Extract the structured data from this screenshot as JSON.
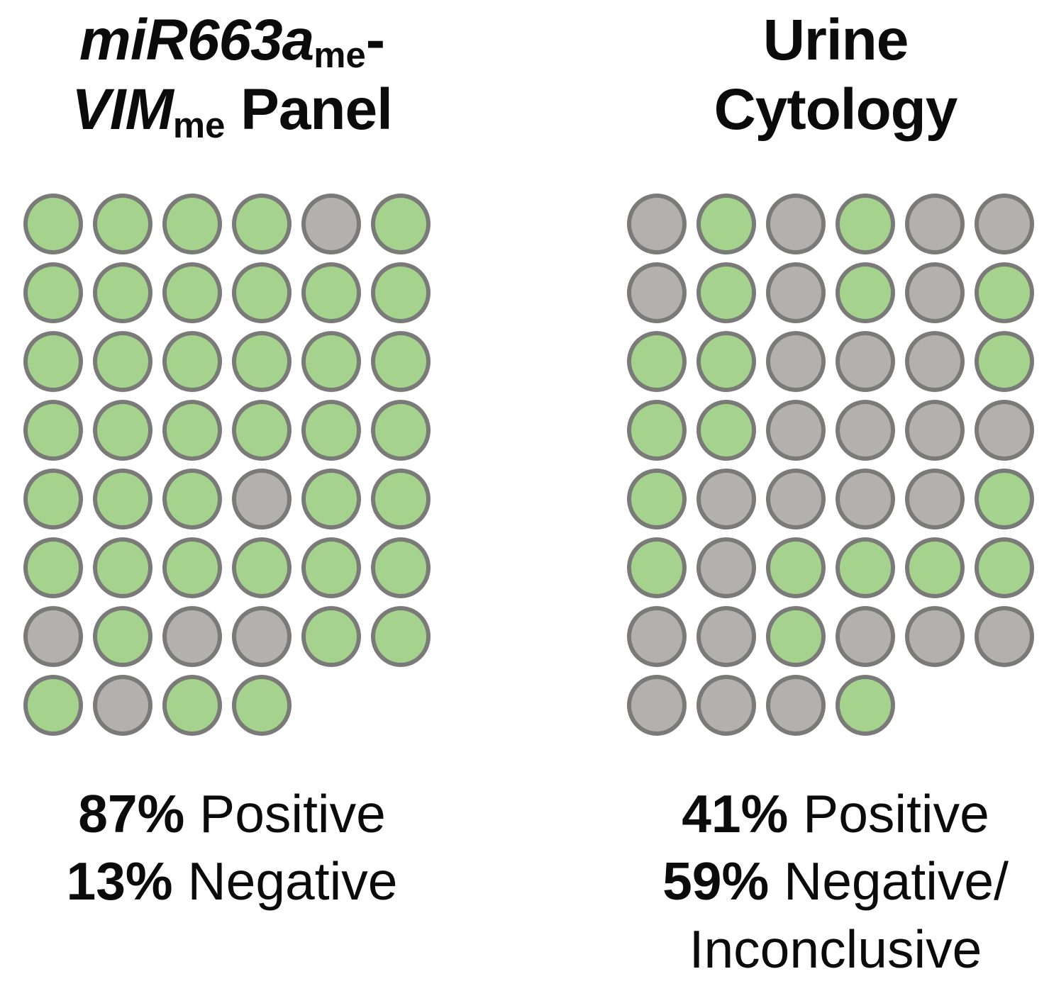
{
  "colors": {
    "positive_green": "#a5d38d",
    "negative_gray": "#b4b0ad",
    "dot_border": "#7a7a78",
    "text": "#0b0b0b",
    "background": "#ffffff"
  },
  "panels": [
    {
      "id": "mir663a-vim-panel",
      "title_plain": "miR663ame-VIMme Panel",
      "title_segments": [
        {
          "text": "miR663a",
          "italic": true,
          "sub": false
        },
        {
          "text": "me",
          "italic": false,
          "sub": true
        },
        {
          "text": "-",
          "italic": false,
          "sub": false
        },
        {
          "text": "\n"
        },
        {
          "text": "VIM",
          "italic": true,
          "sub": false
        },
        {
          "text": "me",
          "italic": false,
          "sub": true
        },
        {
          "text": " Panel",
          "italic": false,
          "sub": false
        }
      ],
      "rows": [
        [
          1,
          1,
          1,
          1,
          0,
          1
        ],
        [
          1,
          1,
          1,
          1,
          1,
          1
        ],
        [
          1,
          1,
          1,
          1,
          1,
          1
        ],
        [
          1,
          1,
          1,
          1,
          1,
          1
        ],
        [
          1,
          1,
          1,
          0,
          1,
          1
        ],
        [
          1,
          1,
          1,
          1,
          1,
          1
        ],
        [
          0,
          1,
          0,
          0,
          1,
          1
        ],
        [
          1,
          0,
          1,
          1
        ]
      ],
      "stat_lines": [
        {
          "value": "87%",
          "label": " Positive"
        },
        {
          "value": "13%",
          "label": " Negative"
        }
      ]
    },
    {
      "id": "urine-cytology",
      "title_plain": "Urine Cytology",
      "title_segments": [
        {
          "text": "Urine",
          "italic": false,
          "sub": false
        },
        {
          "text": "\n"
        },
        {
          "text": "Cytology",
          "italic": false,
          "sub": false
        }
      ],
      "rows": [
        [
          0,
          1,
          0,
          1,
          0,
          0
        ],
        [
          0,
          1,
          0,
          1,
          0,
          1
        ],
        [
          1,
          1,
          0,
          0,
          0,
          1
        ],
        [
          1,
          1,
          0,
          0,
          0,
          0
        ],
        [
          1,
          0,
          0,
          0,
          0,
          1
        ],
        [
          1,
          0,
          1,
          1,
          1,
          1
        ],
        [
          0,
          0,
          1,
          0,
          0,
          0
        ],
        [
          0,
          0,
          0,
          1
        ]
      ],
      "stat_lines": [
        {
          "value": "41%",
          "label": " Positive"
        },
        {
          "value": "59%",
          "label": " Negative/"
        },
        {
          "value": "",
          "label": "Inconclusive"
        }
      ]
    }
  ],
  "chart_data": [
    {
      "type": "waffle",
      "title": "miR663ame-VIMme Panel",
      "categories": [
        "Positive",
        "Negative"
      ],
      "values_percent": [
        87,
        13
      ],
      "dot_counts": {
        "positive_green": 40,
        "negative_gray": 6,
        "total": 46
      },
      "grid_rows": [
        [
          1,
          1,
          1,
          1,
          0,
          1
        ],
        [
          1,
          1,
          1,
          1,
          1,
          1
        ],
        [
          1,
          1,
          1,
          1,
          1,
          1
        ],
        [
          1,
          1,
          1,
          1,
          1,
          1
        ],
        [
          1,
          1,
          1,
          0,
          1,
          1
        ],
        [
          1,
          1,
          1,
          1,
          1,
          1
        ],
        [
          0,
          1,
          0,
          0,
          1,
          1
        ],
        [
          1,
          0,
          1,
          1
        ]
      ],
      "annotations": [
        "87% Positive",
        "13% Negative"
      ],
      "legend_position": "none",
      "grid_shape": "8 rows, 6 columns, last row 4 dots"
    },
    {
      "type": "waffle",
      "title": "Urine Cytology",
      "categories": [
        "Positive",
        "Negative/Inconclusive"
      ],
      "values_percent": [
        41,
        59
      ],
      "dot_counts": {
        "positive_green": 19,
        "negative_gray": 27,
        "total": 46
      },
      "grid_rows": [
        [
          0,
          1,
          0,
          1,
          0,
          0
        ],
        [
          0,
          1,
          0,
          1,
          0,
          1
        ],
        [
          1,
          1,
          0,
          0,
          0,
          1
        ],
        [
          1,
          1,
          0,
          0,
          0,
          0
        ],
        [
          1,
          0,
          0,
          0,
          0,
          1
        ],
        [
          1,
          0,
          1,
          1,
          1,
          1
        ],
        [
          0,
          0,
          1,
          0,
          0,
          0
        ],
        [
          0,
          0,
          0,
          1
        ]
      ],
      "annotations": [
        "41% Positive",
        "59% Negative/Inconclusive"
      ],
      "legend_position": "none",
      "grid_shape": "8 rows, 6 columns, last row 4 dots"
    }
  ]
}
